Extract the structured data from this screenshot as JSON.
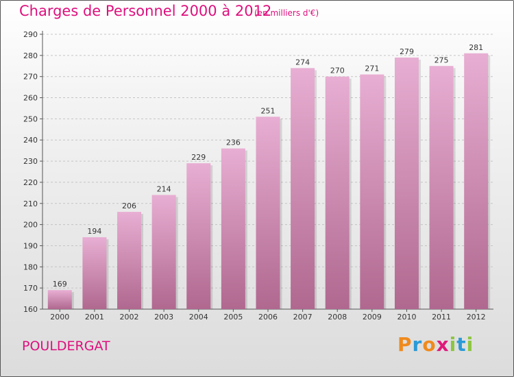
{
  "header": {
    "title": "Charges de Personnel 2000 à 2012",
    "subtitle": "(en milliers d'€)"
  },
  "commune": "POULDERGAT",
  "logo": {
    "letters": [
      "P",
      "r",
      "o",
      "x",
      "i",
      "t",
      "i"
    ],
    "colors": [
      "#ef8a1c",
      "#2a9ad6",
      "#ef8a1c",
      "#e0187a",
      "#8cc63f",
      "#2a9ad6",
      "#8cc63f"
    ]
  },
  "colors": {
    "bar_light": "#e8aed3",
    "bar_dark": "#b0688f",
    "accent": "#de0f7d"
  },
  "chart_data": {
    "type": "bar",
    "title": "Charges de Personnel 2000 à 2012",
    "subtitle": "(en milliers d'€)",
    "categories": [
      "2000",
      "2001",
      "2002",
      "2003",
      "2004",
      "2005",
      "2006",
      "2007",
      "2008",
      "2009",
      "2010",
      "2011",
      "2012"
    ],
    "values": [
      169,
      194,
      206,
      214,
      229,
      236,
      251,
      274,
      270,
      271,
      279,
      275,
      281
    ],
    "ylim": [
      160,
      290
    ],
    "yticks": [
      160,
      170,
      180,
      190,
      200,
      210,
      220,
      230,
      240,
      250,
      260,
      270,
      280,
      290
    ],
    "grid": true,
    "data_labels": true
  }
}
